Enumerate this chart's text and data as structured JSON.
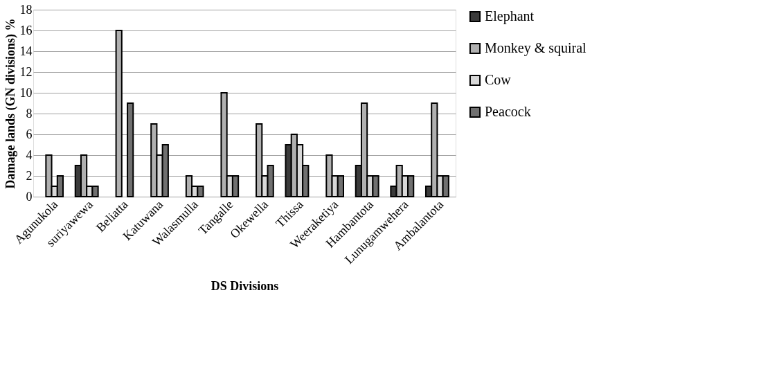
{
  "chart_data": {
    "type": "bar",
    "xlabel": "DS Divisions",
    "ylabel": "Damage lands (GN divisions) %",
    "categories": [
      "Agunukola",
      "suriyawewa",
      "Beliatta",
      "Katuwana",
      "Walasmulla",
      "Tangalle",
      "Okewella",
      "Thissa",
      "Weeraketiya",
      "Hambantota",
      "Lunugamwehera",
      "Ambalantota"
    ],
    "series": [
      {
        "name": "Elephant",
        "color": "#3a3a3a",
        "values": [
          0,
          3,
          0,
          0,
          0,
          0,
          0,
          5,
          0,
          3,
          1,
          1
        ]
      },
      {
        "name": "Monkey & squiral",
        "color": "#b0b0b0",
        "values": [
          4,
          4,
          16,
          7,
          2,
          10,
          7,
          6,
          4,
          9,
          3,
          9
        ]
      },
      {
        "name": "Cow",
        "color": "#d8d8d8",
        "values": [
          1,
          1,
          0,
          4,
          1,
          2,
          2,
          5,
          2,
          2,
          2,
          2
        ]
      },
      {
        "name": "Peacock",
        "color": "#707070",
        "values": [
          2,
          1,
          9,
          5,
          1,
          2,
          3,
          3,
          2,
          2,
          2,
          2
        ]
      }
    ],
    "ylim": [
      0,
      18
    ],
    "yticks": [
      0,
      2,
      4,
      6,
      8,
      10,
      12,
      14,
      16,
      18
    ],
    "grid": "y",
    "legend": "right"
  }
}
